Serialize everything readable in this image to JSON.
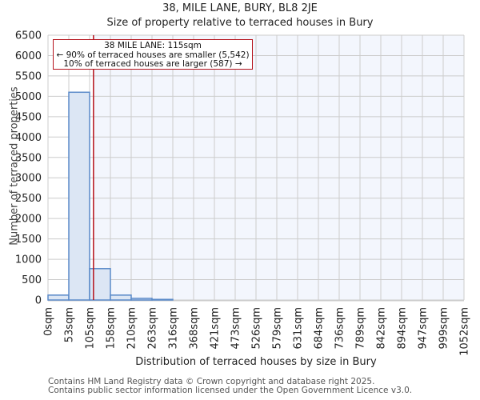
{
  "header": {
    "title": "38, MILE LANE, BURY, BL8 2JE",
    "subtitle": "Size of property relative to terraced houses in Bury"
  },
  "axes": {
    "ylabel": "Number of terraced properties",
    "xlabel": "Distribution of terraced houses by size in Bury"
  },
  "annotation": {
    "line1": "38 MILE LANE: 115sqm",
    "line2": "← 90% of terraced houses are smaller (5,542)",
    "line3": "10% of terraced houses are larger (587) →"
  },
  "footer": {
    "line1": "Contains HM Land Registry data © Crown copyright and database right 2025.",
    "line2": "Contains public sector information licensed under the Open Government Licence v3.0."
  },
  "colors": {
    "bar_fill": "#dce6f4",
    "bar_stroke": "#5b8ac9",
    "marker": "#b5121b",
    "highlight_bg": "#f3f6fd",
    "grid": "#cccccc"
  },
  "chart_data": {
    "type": "bar",
    "title": "38, MILE LANE, BURY, BL8 2JE — Size of property relative to terraced houses in Bury",
    "xlabel": "Distribution of terraced houses by size in Bury",
    "ylabel": "Number of terraced properties",
    "categories": [
      "0sqm",
      "53sqm",
      "105sqm",
      "158sqm",
      "210sqm",
      "263sqm",
      "316sqm",
      "368sqm",
      "421sqm",
      "473sqm",
      "526sqm",
      "579sqm",
      "631sqm",
      "684sqm",
      "736sqm",
      "789sqm",
      "842sqm",
      "894sqm",
      "947sqm",
      "999sqm",
      "1052sqm"
    ],
    "bins": [
      {
        "from": "0sqm",
        "to": "53sqm",
        "value": 120
      },
      {
        "from": "53sqm",
        "to": "105sqm",
        "value": 5100
      },
      {
        "from": "105sqm",
        "to": "158sqm",
        "value": 770
      },
      {
        "from": "158sqm",
        "to": "210sqm",
        "value": 120
      },
      {
        "from": "210sqm",
        "to": "263sqm",
        "value": 40
      },
      {
        "from": "263sqm",
        "to": "316sqm",
        "value": 15
      },
      {
        "from": "316sqm",
        "to": "368sqm",
        "value": 0
      },
      {
        "from": "368sqm",
        "to": "421sqm",
        "value": 0
      },
      {
        "from": "421sqm",
        "to": "473sqm",
        "value": 0
      },
      {
        "from": "473sqm",
        "to": "526sqm",
        "value": 0
      },
      {
        "from": "526sqm",
        "to": "579sqm",
        "value": 0
      },
      {
        "from": "579sqm",
        "to": "631sqm",
        "value": 0
      },
      {
        "from": "631sqm",
        "to": "684sqm",
        "value": 0
      },
      {
        "from": "684sqm",
        "to": "736sqm",
        "value": 0
      },
      {
        "from": "736sqm",
        "to": "789sqm",
        "value": 0
      },
      {
        "from": "789sqm",
        "to": "842sqm",
        "value": 0
      },
      {
        "from": "842sqm",
        "to": "894sqm",
        "value": 0
      },
      {
        "from": "894sqm",
        "to": "947sqm",
        "value": 0
      },
      {
        "from": "947sqm",
        "to": "999sqm",
        "value": 0
      },
      {
        "from": "999sqm",
        "to": "1052sqm",
        "value": 0
      }
    ],
    "values": [
      120,
      5100,
      770,
      120,
      40,
      15,
      0,
      0,
      0,
      0,
      0,
      0,
      0,
      0,
      0,
      0,
      0,
      0,
      0,
      0
    ],
    "yticks": [
      0,
      500,
      1000,
      1500,
      2000,
      2500,
      3000,
      3500,
      4000,
      4500,
      5000,
      5500,
      6000,
      6500
    ],
    "ylim": [
      0,
      6500
    ],
    "marker": {
      "value_sqm": 115,
      "label": "38 MILE LANE: 115sqm"
    },
    "grid": true,
    "legend": "none"
  }
}
